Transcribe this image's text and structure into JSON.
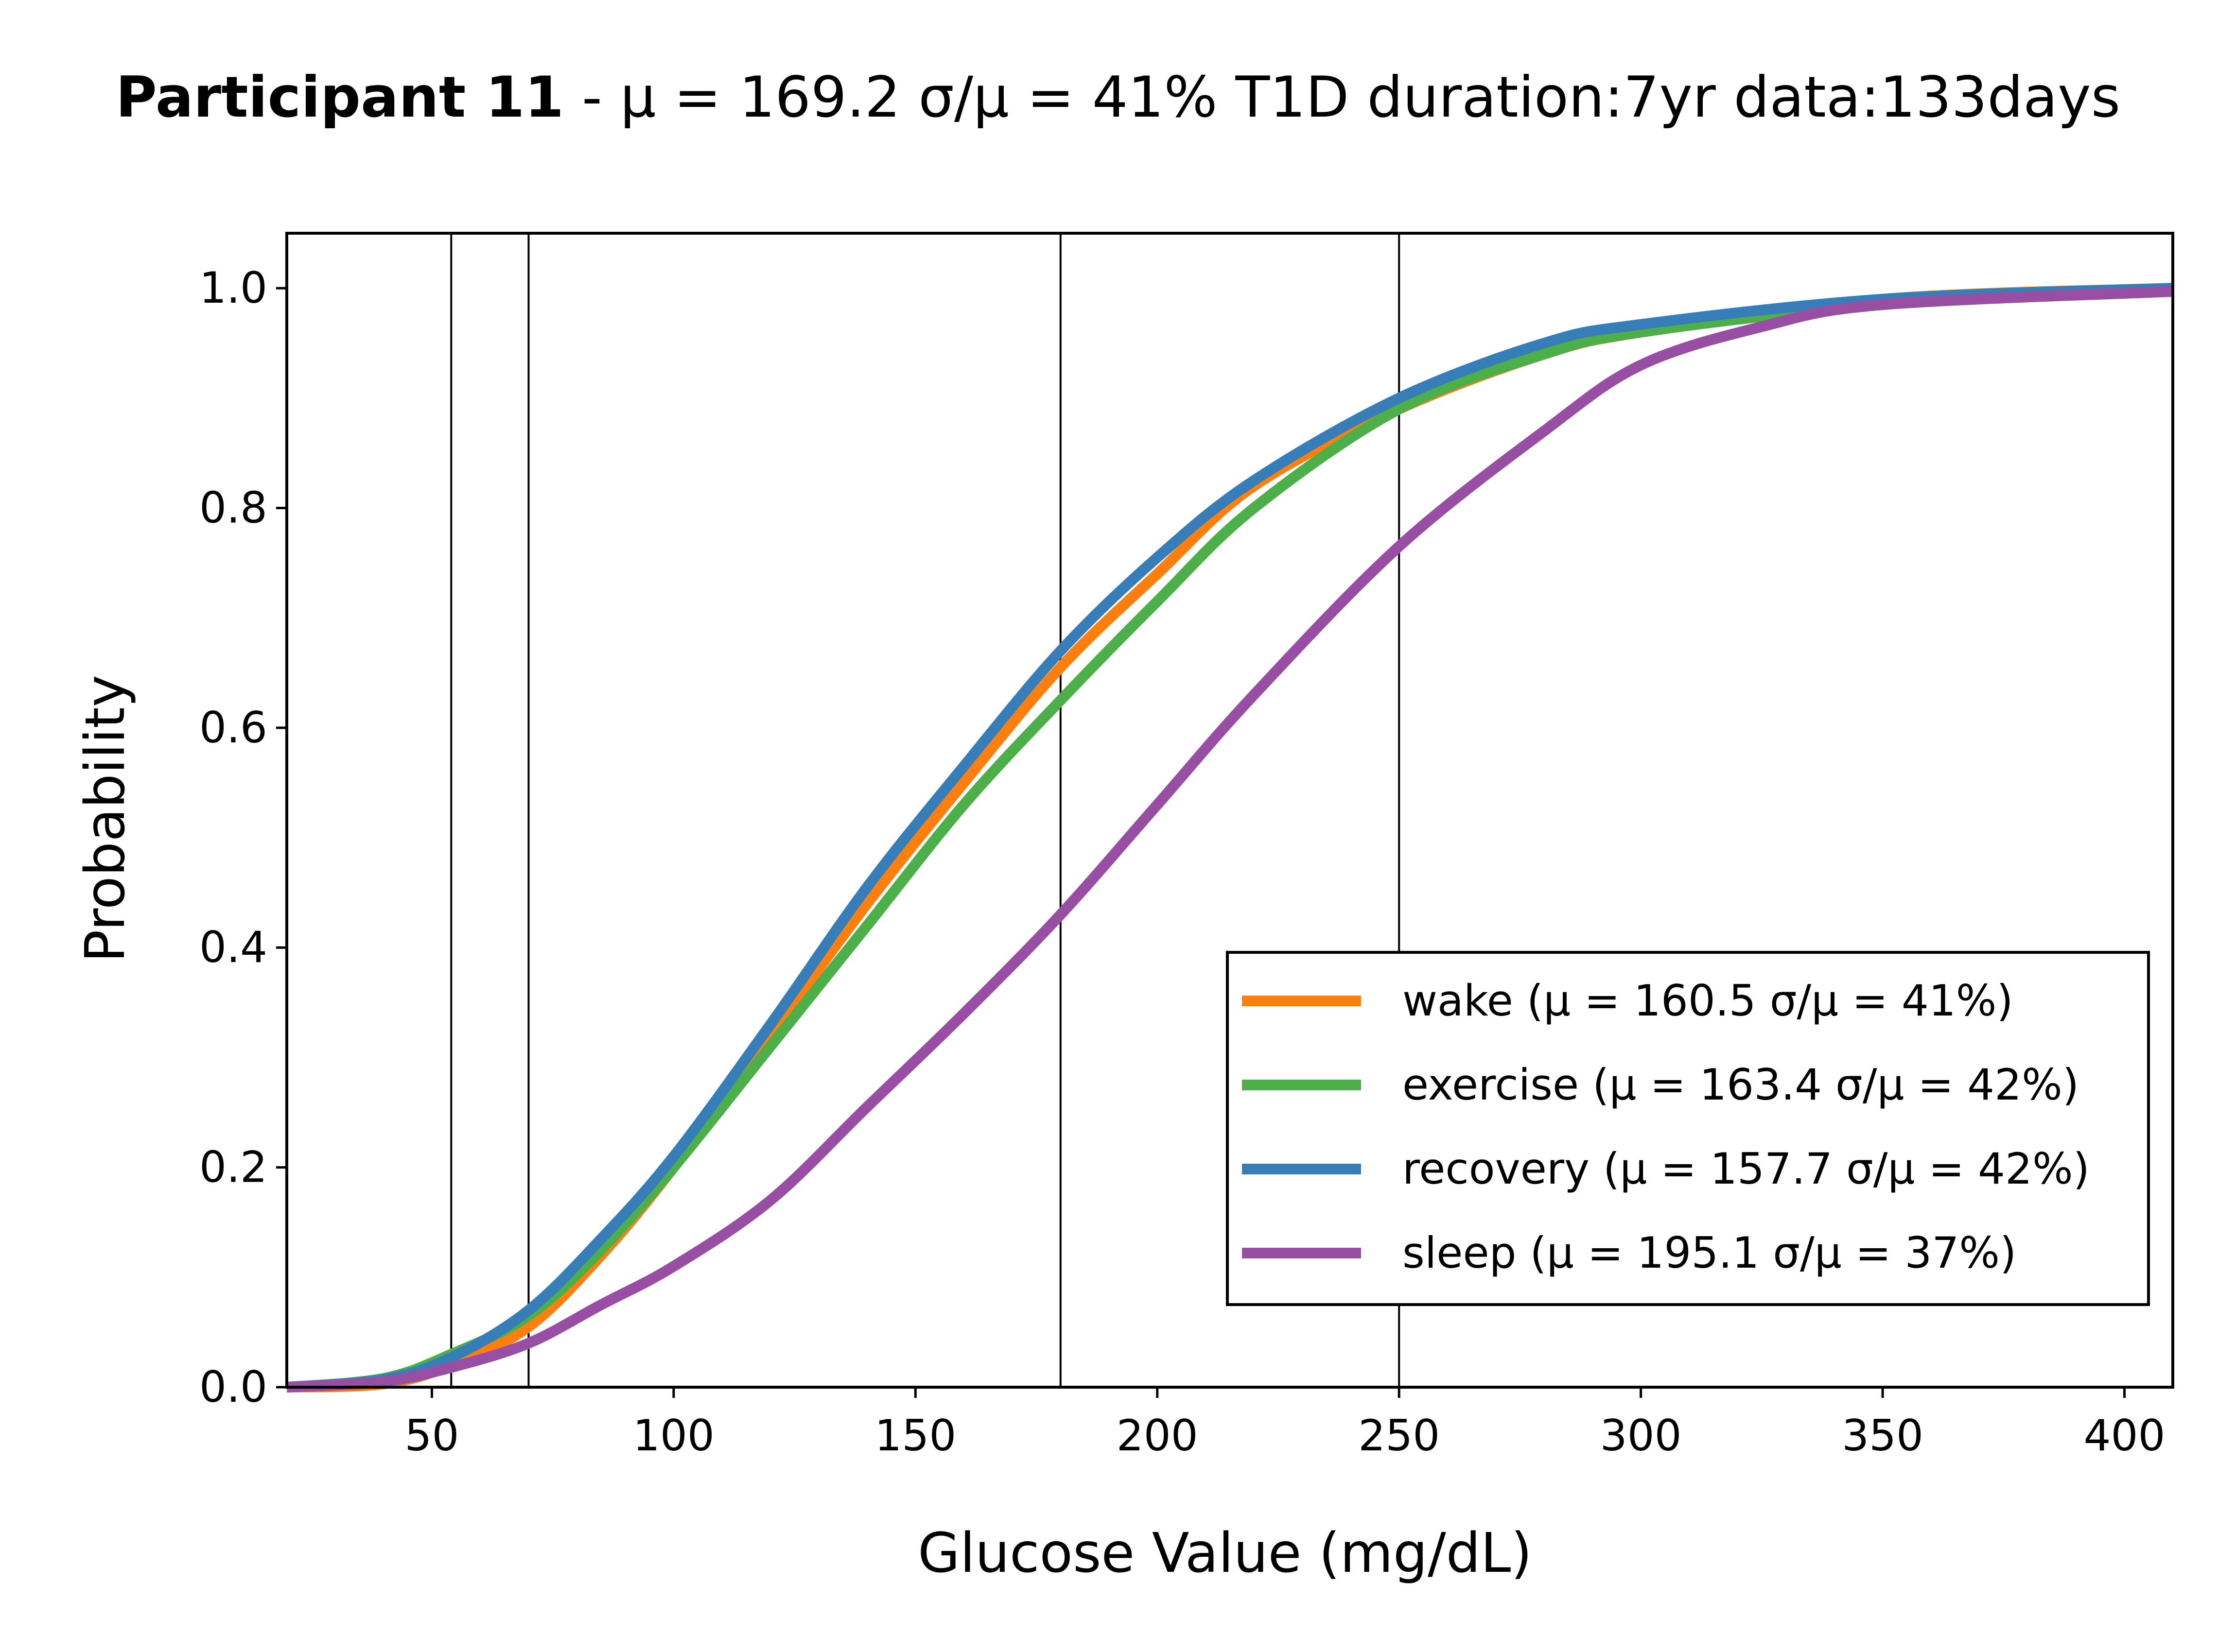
{
  "chart_data": {
    "type": "line",
    "title_bold": "Participant 11",
    "title_rest": " - μ = 169.2   σ/μ = 41%   T1D duration:7yr   data:133days",
    "xlabel": "Glucose Value (mg/dL)",
    "ylabel": "Probability",
    "xlim": [
      20,
      410
    ],
    "ylim": [
      0,
      1.05
    ],
    "xticks": [
      50,
      100,
      150,
      200,
      250,
      300,
      350,
      400
    ],
    "yticks": [
      0.0,
      0.2,
      0.4,
      0.6,
      0.8,
      1.0
    ],
    "ytick_labels": [
      "0.0",
      "0.2",
      "0.4",
      "0.6",
      "0.8",
      "1.0"
    ],
    "vlines": [
      54,
      70,
      180,
      250
    ],
    "grid": false,
    "legend_position": "lower-right",
    "series": [
      {
        "name": "wake",
        "label": "wake (μ = 160.5  σ/μ = 41%)",
        "color": "#ff7f0e",
        "x": [
          20,
          40,
          54,
          70,
          85,
          100,
          120,
          140,
          160,
          180,
          200,
          220,
          250,
          280,
          300,
          350,
          410
        ],
        "y": [
          0.0,
          0.003,
          0.02,
          0.055,
          0.12,
          0.2,
          0.32,
          0.44,
          0.55,
          0.655,
          0.74,
          0.82,
          0.89,
          0.94,
          0.96,
          0.99,
          1.0
        ]
      },
      {
        "name": "exercise",
        "label": "exercise (μ = 163.4  σ/μ = 42%)",
        "color": "#4daf4a",
        "x": [
          20,
          40,
          54,
          70,
          85,
          100,
          120,
          140,
          160,
          180,
          200,
          220,
          250,
          280,
          300,
          350,
          410
        ],
        "y": [
          0.0,
          0.008,
          0.03,
          0.065,
          0.125,
          0.2,
          0.31,
          0.42,
          0.53,
          0.625,
          0.715,
          0.8,
          0.89,
          0.94,
          0.96,
          0.985,
          0.997
        ]
      },
      {
        "name": "recovery",
        "label": "recovery (μ = 157.7  σ/μ = 42%)",
        "color": "#377eb8",
        "x": [
          20,
          40,
          54,
          70,
          85,
          100,
          120,
          140,
          160,
          180,
          200,
          220,
          250,
          280,
          300,
          350,
          410
        ],
        "y": [
          0.0,
          0.007,
          0.027,
          0.07,
          0.135,
          0.21,
          0.33,
          0.455,
          0.565,
          0.67,
          0.755,
          0.825,
          0.9,
          0.95,
          0.967,
          0.99,
          1.0
        ]
      },
      {
        "name": "sleep",
        "label": "sleep (μ = 195.1  σ/μ = 37%)",
        "color": "#984ea3",
        "x": [
          20,
          40,
          54,
          70,
          85,
          100,
          120,
          140,
          160,
          180,
          200,
          220,
          250,
          280,
          300,
          325,
          350,
          410
        ],
        "y": [
          0.0,
          0.005,
          0.018,
          0.04,
          0.075,
          0.11,
          0.17,
          0.255,
          0.34,
          0.43,
          0.53,
          0.63,
          0.765,
          0.87,
          0.93,
          0.965,
          0.985,
          0.997
        ]
      }
    ]
  }
}
